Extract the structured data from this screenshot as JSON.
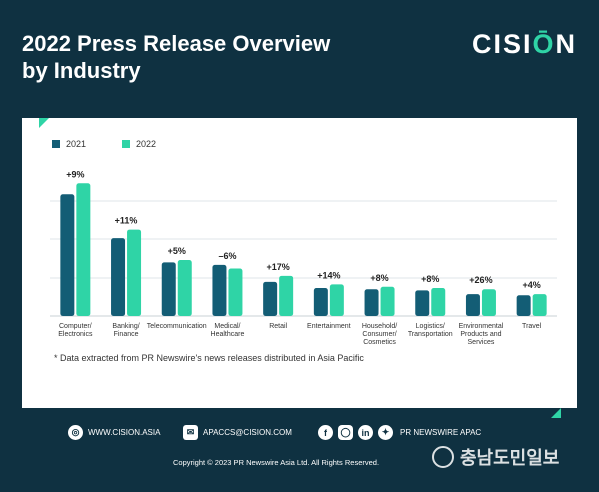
{
  "header": {
    "title": "2022 Press Release Overview\nby Industry",
    "logo_main": "CISI",
    "logo_accent": "Ō",
    "logo_end": "N"
  },
  "legend": [
    {
      "label": "2021",
      "color": "#135d75"
    },
    {
      "label": "2022",
      "color": "#2fd4a6"
    }
  ],
  "chart_data": {
    "type": "bar",
    "categories": [
      [
        "Computer/",
        "Electronics"
      ],
      [
        "Banking/",
        "Finance"
      ],
      [
        "Telecommunication"
      ],
      [
        "Medical/",
        "Healthcare"
      ],
      [
        "Retail"
      ],
      [
        "Entertainment"
      ],
      [
        "Household/",
        "Consumer/",
        "Cosmetics"
      ],
      [
        "Logistics/",
        "Transportation"
      ],
      [
        "Environmental",
        "Products and",
        "Services"
      ],
      [
        "Travel"
      ]
    ],
    "series": [
      {
        "name": "2021",
        "color": "#135d75",
        "values": [
          100,
          64,
          44,
          42,
          28,
          23,
          22,
          21,
          18,
          17
        ]
      },
      {
        "name": "2022",
        "color": "#2fd4a6",
        "values": [
          109,
          71,
          46,
          39,
          33,
          26,
          24,
          23,
          22,
          18
        ]
      }
    ],
    "annotations": [
      "+9%",
      "+11%",
      "+5%",
      "–6%",
      "+17%",
      "+14%",
      "+8%",
      "+8%",
      "+26%",
      "+4%"
    ],
    "ylim": [
      0,
      115
    ],
    "grid": true,
    "legend_position": "top-left"
  },
  "footnote": "* Data extracted from PR Newswire's news releases distributed in Asia Pacific",
  "footer": {
    "website": "WWW.CISION.ASIA",
    "email": "APACCS@CISION.COM",
    "social_icons": [
      "f",
      "ig",
      "in",
      "tw"
    ],
    "social_label": "PR NEWSWIRE APAC",
    "copyright": "Copyright © 2023 PR Newswire Asia Ltd. All Rights Reserved."
  },
  "watermark": "충남도민일보"
}
